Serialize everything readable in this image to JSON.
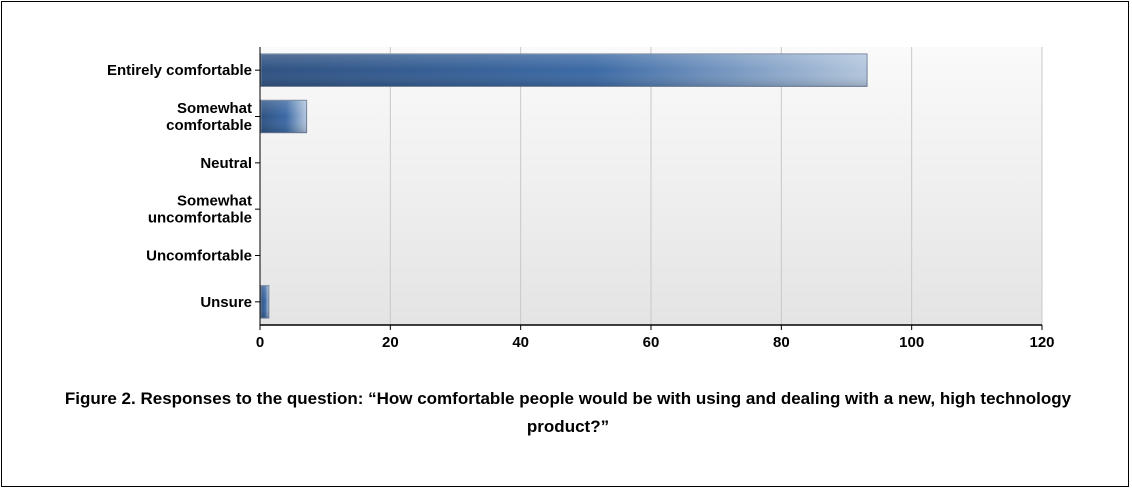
{
  "figure": {
    "caption": "Figure 2. Responses to the question: “How comfortable people would be with using and dealing with a new, high technology product?”"
  },
  "chart_data": {
    "type": "bar",
    "orientation": "horizontal",
    "categories": [
      "Entirely comfortable",
      "Somewhat comfortable",
      "Neutral",
      "Somewhat uncomfortable",
      "Uncomfortable",
      "Unsure"
    ],
    "category_lines": [
      [
        "Entirely comfortable"
      ],
      [
        "Somewhat",
        "comfortable"
      ],
      [
        "Neutral"
      ],
      [
        "Somewhat",
        "uncomfortable"
      ],
      [
        "Uncomfortable"
      ],
      [
        "Unsure"
      ]
    ],
    "values": [
      93,
      7,
      0,
      0,
      0,
      1.2
    ],
    "title": "",
    "xlabel": "",
    "ylabel": "",
    "xlim": [
      0,
      120
    ],
    "xticks": [
      0,
      20,
      40,
      60,
      80,
      100,
      120
    ],
    "grid": true,
    "legend": "none",
    "colors": {
      "bar_dark": "#2f5282",
      "bar_mid": "#3c6aa5",
      "bar_light": "#b3c6dd",
      "plot_bg_top": "#fafafa",
      "plot_bg_bottom": "#e4e4e4",
      "gridline": "#c8c8c8",
      "axis": "#000000"
    }
  }
}
